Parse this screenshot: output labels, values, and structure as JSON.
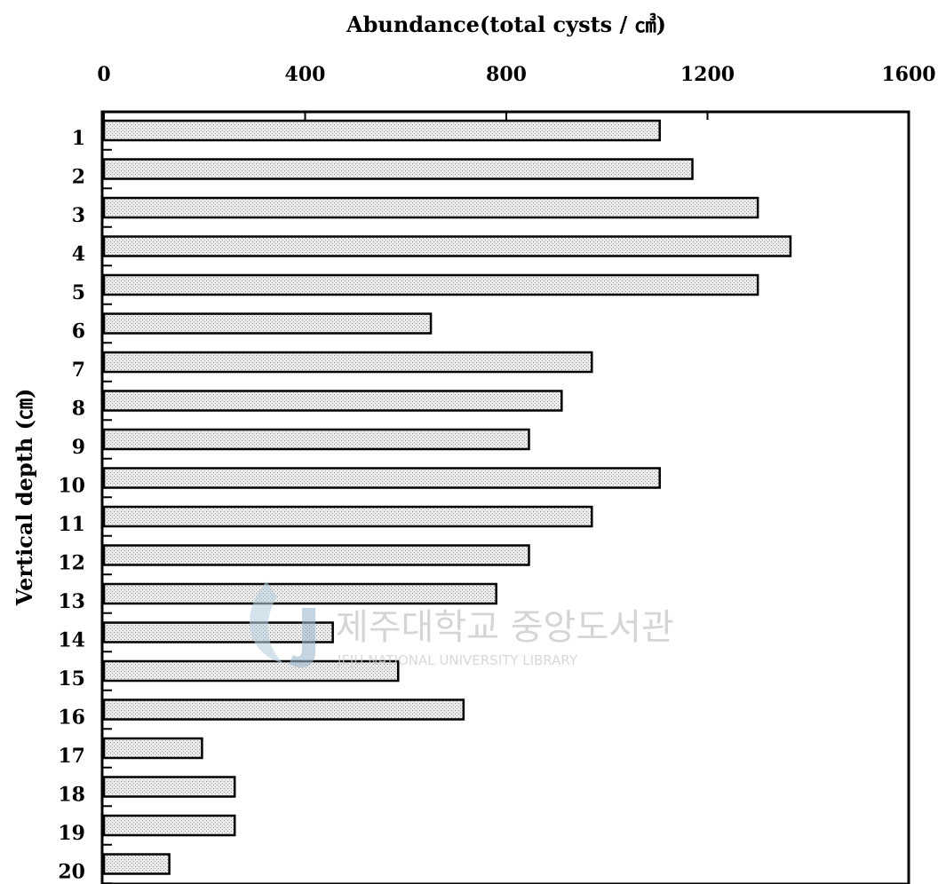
{
  "chart_data": {
    "type": "bar",
    "orientation": "horizontal",
    "title": "Abundance(total cysts / ㎤)",
    "ylabel": "Vertical depth  (㎝)",
    "xlim": [
      0,
      1600
    ],
    "xticks": [
      0,
      400,
      800,
      1200,
      1600
    ],
    "xtick_labels": [
      "0",
      "400",
      "800",
      "1200",
      "1600"
    ],
    "categories": [
      "1",
      "2",
      "3",
      "4",
      "5",
      "6",
      "7",
      "8",
      "9",
      "10",
      "11",
      "12",
      "13",
      "14",
      "15",
      "16",
      "17",
      "18",
      "19",
      "20"
    ],
    "values": [
      1105,
      1170,
      1300,
      1365,
      1300,
      650,
      970,
      910,
      845,
      1105,
      970,
      845,
      780,
      455,
      585,
      715,
      195,
      260,
      260,
      130
    ],
    "bar_fill": "#e6e6e6",
    "bar_stroke": "#000000",
    "grid": false
  },
  "watermark": {
    "title": "제주대학교 중앙도서관",
    "subtitle": "JEJU NATIONAL UNIVERSITY  LIBRARY",
    "logo_color": "#a9c4d8"
  }
}
